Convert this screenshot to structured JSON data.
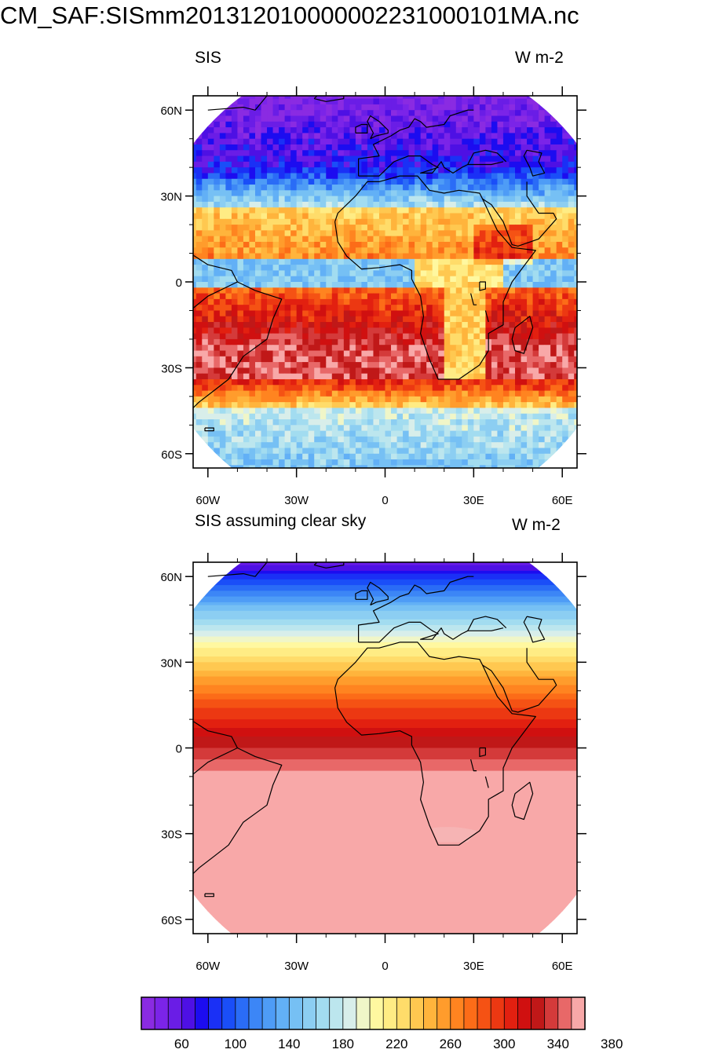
{
  "title": "CM_SAF: SISmm20131201000000223100010 1MA.nc",
  "panels": [
    {
      "id": "sis",
      "left_label": "SIS",
      "right_label": "W m-2",
      "field": "cloudy"
    },
    {
      "id": "sis-clear-sky",
      "left_label": "SIS assuming clear sky",
      "right_label": "W m-2",
      "field": "clear"
    }
  ],
  "lat_ticks": [
    {
      "label": "60N",
      "lat": 60
    },
    {
      "label": "30N",
      "lat": 30
    },
    {
      "label": "0",
      "lat": 0
    },
    {
      "label": "30S",
      "lat": -30
    },
    {
      "label": "60S",
      "lat": -60
    }
  ],
  "lon_ticks": [
    {
      "label": "60W",
      "lon": -60
    },
    {
      "label": "30W",
      "lon": -30
    },
    {
      "label": "0",
      "lon": 0
    },
    {
      "label": "30E",
      "lon": 30
    },
    {
      "label": "60E",
      "lon": 60
    }
  ],
  "map_extent": {
    "lon_min": -65,
    "lon_max": 65,
    "lat_min": -65,
    "lat_max": 65
  },
  "colorbar": {
    "levels_min": 40,
    "level_step": 10,
    "labels": [
      "60",
      "100",
      "140",
      "180",
      "220",
      "260",
      "300",
      "340",
      "380"
    ],
    "colors": [
      "#8a2be2",
      "#7b24e8",
      "#6a1de6",
      "#4e10e4",
      "#1c0cf0",
      "#1a30f6",
      "#1a4ef8",
      "#2a6cf6",
      "#3c86f6",
      "#4e9cf6",
      "#62b0f6",
      "#76c0f4",
      "#8ccef2",
      "#a2dcf0",
      "#bce6ee",
      "#d8eeea",
      "#f0f6c8",
      "#fff8a0",
      "#ffec84",
      "#ffdc6a",
      "#ffc850",
      "#ffb43c",
      "#ff9c2c",
      "#ff8420",
      "#fc6c18",
      "#f55214",
      "#ec3812",
      "#e22010",
      "#d01010",
      "#c01818",
      "#d43a3a",
      "#e86868",
      "#f8a8a8"
    ]
  }
}
